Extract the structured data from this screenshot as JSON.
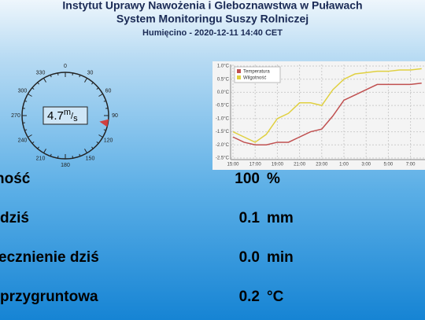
{
  "header": {
    "title": "Instytut Uprawy Nawożenia i Gleboznawstwa w Puławach",
    "subtitle": "System Monitoringu Suszy Rolniczej",
    "station": "Humięcino - 2020-12-11 14:40 CET"
  },
  "wind": {
    "speed": "4.7",
    "unit_top": "m",
    "unit_bottom": "s",
    "direction": 100,
    "dial_labels": [
      0,
      30,
      60,
      90,
      120,
      150,
      180,
      210,
      240,
      270,
      300,
      330
    ]
  },
  "chart": {
    "type": "line",
    "x": [
      "15:00",
      "16:00",
      "17:00",
      "18:00",
      "19:00",
      "20:00",
      "21:00",
      "22:00",
      "23:00",
      "0:00",
      "1:00",
      "2:00",
      "3:00",
      "4:00",
      "5:00",
      "6:00",
      "7:00",
      "8:00"
    ],
    "xticks": [
      "15:00",
      "17:00",
      "19:00",
      "21:00",
      "23:00",
      "1:00",
      "3:00",
      "5:00",
      "7:00"
    ],
    "ylim": [
      -2.5,
      1.0
    ],
    "yticks": [
      {
        "value": -2.5,
        "label": "-2.5°C"
      },
      {
        "value": -2.0,
        "label": "-2.0°C"
      },
      {
        "value": -1.5,
        "label": "-1.5°C"
      },
      {
        "value": -1.0,
        "label": "-1.0°C"
      },
      {
        "value": -0.5,
        "label": "-0.5°C"
      },
      {
        "value": 0.0,
        "label": "0.0°C"
      },
      {
        "value": 0.5,
        "label": "0.5°C"
      },
      {
        "value": 1.0,
        "label": "1.0°C"
      }
    ],
    "grid": true,
    "series": [
      {
        "name": "Temperatura",
        "color": "#c05050",
        "values": [
          -1.7,
          -1.9,
          -2.0,
          -2.0,
          -1.9,
          -1.9,
          -1.7,
          -1.5,
          -1.4,
          -0.9,
          -0.3,
          -0.1,
          0.1,
          0.3,
          0.3,
          0.3,
          0.3,
          0.35
        ]
      },
      {
        "name": "Wilgotność",
        "color": "#e0d040",
        "values": [
          -1.5,
          -1.7,
          -1.9,
          -1.6,
          -1.0,
          -0.8,
          -0.4,
          -0.4,
          -0.5,
          0.1,
          0.5,
          0.7,
          0.75,
          0.8,
          0.8,
          0.85,
          0.85,
          0.9
        ]
      }
    ]
  },
  "readings": [
    {
      "label": "ność",
      "value": "100",
      "unit": "%"
    },
    {
      "label": "dziś",
      "value": "0.1",
      "unit": "mm"
    },
    {
      "label": "ecznienie dziś",
      "value": "0.0",
      "unit": "min"
    },
    {
      "label": "przygruntowa",
      "value": "0.2",
      "unit": "°C"
    }
  ]
}
